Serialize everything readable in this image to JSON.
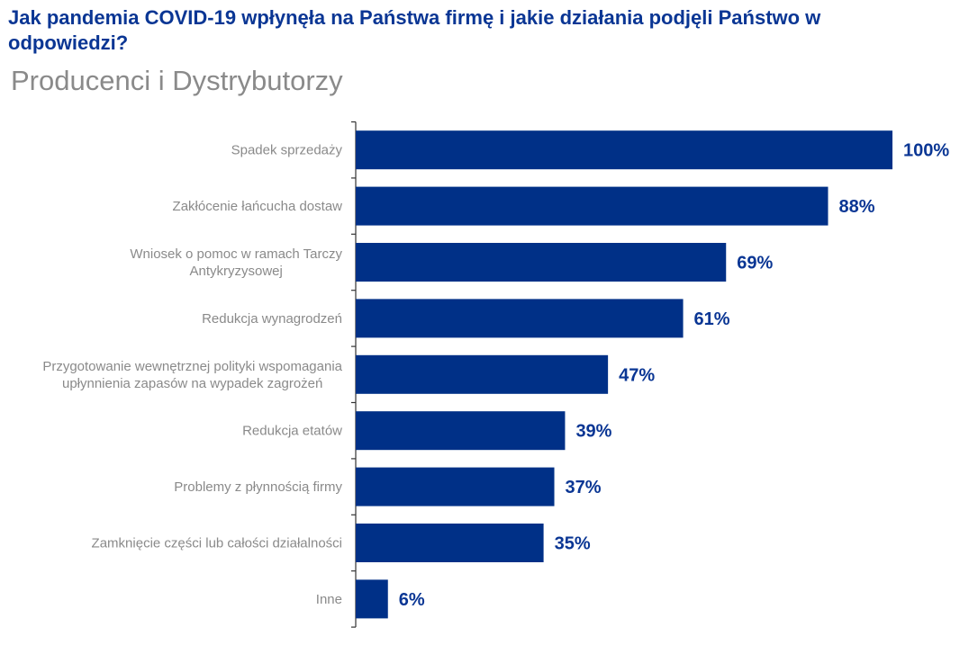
{
  "header": {
    "title": "Jak pandemia COVID-19 wpłynęła na Państwa firmę i jakie działania podjęli Państwo w odpowiedzi?",
    "subtitle": "Producenci i Dystrybutorzy"
  },
  "chart_data": {
    "type": "bar",
    "orientation": "horizontal",
    "categories": [
      "Spadek sprzedaży",
      "Zakłócenie łańcucha dostaw",
      "Wniosek o pomoc w ramach Tarczy\nAntykryzysowej",
      "Redukcja wynagrodzeń",
      "Przygotowanie wewnętrznej polityki wspomagania\nupłynnienia zapasów na wypadek zagrożeń",
      "Redukcja etatów",
      "Problemy z płynnością firmy",
      "Zamknięcie części lub całości działalności",
      "Inne"
    ],
    "values": [
      100,
      88,
      69,
      61,
      47,
      39,
      37,
      35,
      6
    ],
    "value_labels": [
      "100%",
      "88%",
      "69%",
      "61%",
      "47%",
      "39%",
      "37%",
      "35%",
      "6%"
    ],
    "xlim": [
      0,
      100
    ],
    "grid": false,
    "legend": "none",
    "colors": {
      "bar": "#003087",
      "label": "#8a8a8a",
      "value": "#0a3694",
      "axis": "#333333"
    }
  }
}
